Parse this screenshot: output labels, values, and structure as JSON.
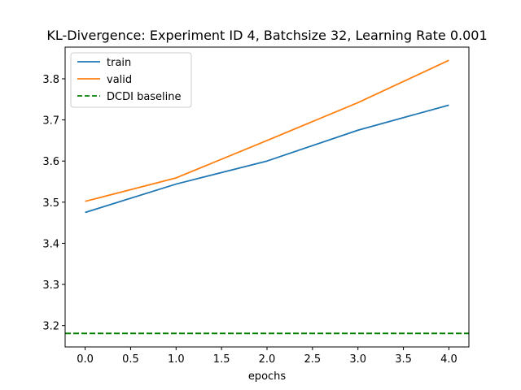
{
  "chart_data": {
    "type": "line",
    "title": "KL-Divergence: Experiment ID 4, Batchsize 32, Learning Rate 0.001",
    "xlabel": "epochs",
    "ylabel": "",
    "xlim": [
      -0.22,
      4.22
    ],
    "ylim": [
      3.148,
      3.877
    ],
    "x_ticks": [
      "0.0",
      "0.5",
      "1.0",
      "1.5",
      "2.0",
      "2.5",
      "3.0",
      "3.5",
      "4.0"
    ],
    "y_ticks": [
      "3.2",
      "3.3",
      "3.4",
      "3.5",
      "3.6",
      "3.7",
      "3.8"
    ],
    "x": [
      0,
      1,
      2,
      3,
      4
    ],
    "series": [
      {
        "name": "train",
        "color": "#1f77b4",
        "style": "solid",
        "values": [
          3.475,
          3.544,
          3.6,
          3.675,
          3.736
        ]
      },
      {
        "name": "valid",
        "color": "#ff7f0e",
        "style": "solid",
        "values": [
          3.502,
          3.559,
          3.65,
          3.742,
          3.845
        ]
      }
    ],
    "baseline": {
      "name": "DCDI baseline",
      "color": "#008000",
      "style": "dashed",
      "value": 3.181
    },
    "grid": false,
    "legend_position": "top-left"
  }
}
